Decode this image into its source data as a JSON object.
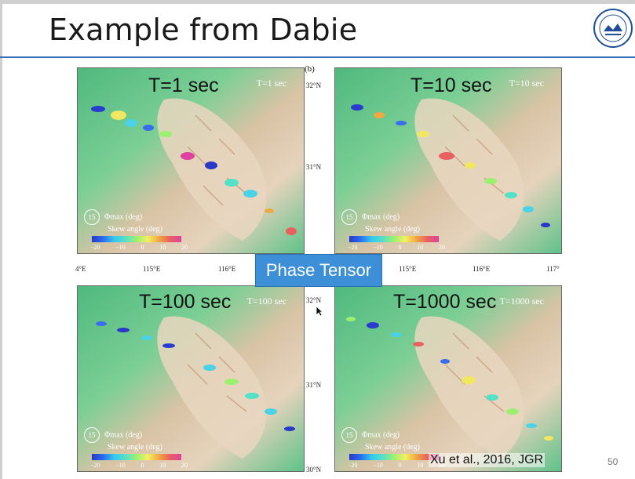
{
  "slide": {
    "title": "Example from Dabie",
    "overlay_label": "Phase Tensor",
    "citation": "Xu et al., 2016, JGR",
    "page_number": "50"
  },
  "figure": {
    "panel_letter": "(b)",
    "lon_ticks": [
      "4°E",
      "115°E",
      "116°E",
      "117°"
    ],
    "lat_ticks": [
      "32°N",
      "31°N",
      "30°N"
    ],
    "lat_tick_partial": "(b)",
    "panels": [
      {
        "big_label": "T=1 sec",
        "small_label": "T=1 sec"
      },
      {
        "big_label": "T=10 sec",
        "small_label": "T=10 sec"
      },
      {
        "big_label": "T=100 sec",
        "small_label": "T=100 sec"
      },
      {
        "big_label": "T=1000 sec",
        "small_label": "T=1000 sec"
      }
    ],
    "legend": {
      "circle_value": "15",
      "phi_label": "Φmax (deg)",
      "skew_label": "Skew angle (deg)",
      "colorbar_ticks": [
        "−20",
        "−10",
        "0",
        "10",
        "20"
      ]
    }
  },
  "colors": {
    "accent_rule": "#3a6fb6",
    "overlay_bg": "#3d8fd8",
    "terrain_low": "#5fc28a",
    "terrain_high": "#e8d2b8"
  }
}
